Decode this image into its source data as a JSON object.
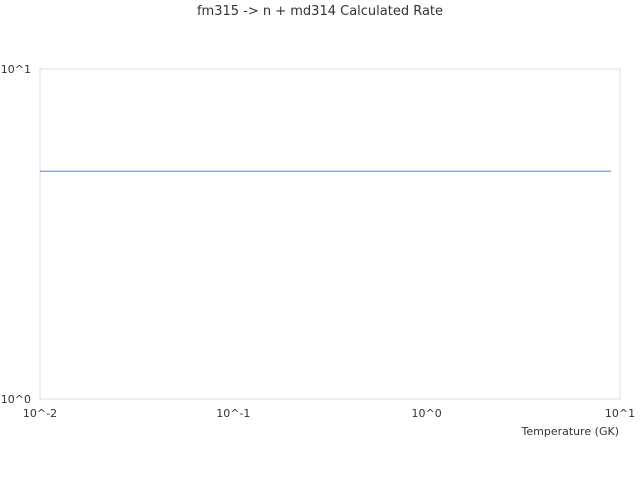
{
  "chart_data": {
    "type": "line",
    "title": "fm315 -> n + md314 Calculated Rate",
    "xlabel": "Temperature (GK)",
    "ylabel": "",
    "xscale": "log",
    "yscale": "log",
    "xlim": [
      0.01,
      10
    ],
    "ylim": [
      1,
      10
    ],
    "xticks": [
      "10^-2",
      "10^-1",
      "10^0",
      "10^1"
    ],
    "yticks": [
      "10^0",
      "10^1"
    ],
    "grid": false,
    "series": [
      {
        "x": [
          0.01,
          9
        ],
        "y": [
          4.9,
          4.9
        ],
        "color": "#5aa7f0"
      }
    ]
  }
}
